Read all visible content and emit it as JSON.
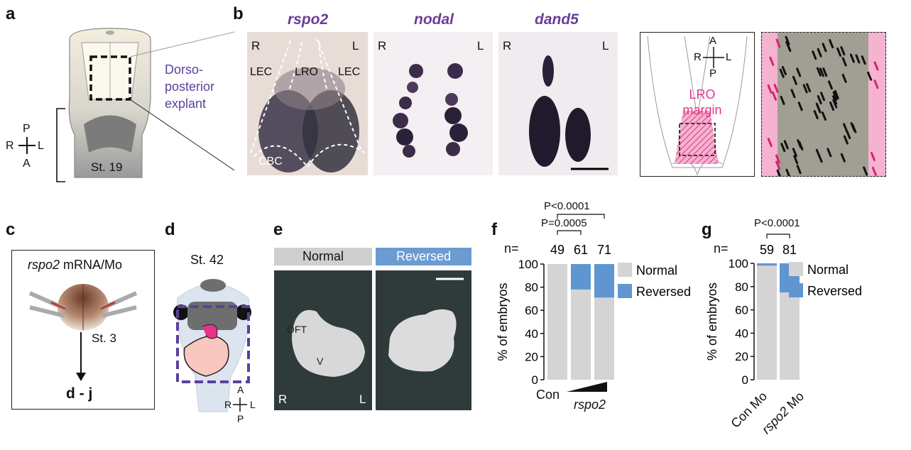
{
  "panels": {
    "a": {
      "letter": "a",
      "explant_label_line1": "Dorso-",
      "explant_label_line2": "posterior",
      "explant_label_line3": "explant",
      "stage": "St. 19",
      "axes": {
        "top": "P",
        "bottom": "A",
        "left": "R",
        "right": "L"
      },
      "colors": {
        "explant_label": "#5b3f9e"
      }
    },
    "b": {
      "letter": "b",
      "genes": [
        "rspo2",
        "nodal",
        "dand5"
      ],
      "left_side": "R",
      "right_side": "L",
      "regions": {
        "lec_left": "LEC",
        "lro": "LRO",
        "lec_right": "LEC",
        "cbc": "CBC"
      },
      "schematic": {
        "axes": {
          "top": "A",
          "bottom": "P",
          "left": "R",
          "right": "L"
        },
        "lro_line1": "LRO",
        "lro_line2": "margin",
        "colors": {
          "lro_margin": "#e8338a"
        }
      }
    },
    "c": {
      "letter": "c",
      "gene": "rspo2",
      "injection_text": " mRNA/Mo",
      "stage": "St. 3",
      "result": "d - j"
    },
    "d": {
      "letter": "d",
      "stage": "St. 42",
      "axes": {
        "top": "A",
        "bottom": "P",
        "left": "R",
        "right": "L"
      }
    },
    "e": {
      "letter": "e",
      "normal_label": "Normal",
      "reversed_label": "Reversed",
      "oft": "OFT",
      "v": "V",
      "left_side": "R",
      "right_side": "L",
      "colors": {
        "normal_header": "#cfcfcf",
        "reversed_header": "#6b9bd1"
      }
    },
    "f": {
      "letter": "f",
      "p1": "P<0.0001",
      "p2": "P=0.0005",
      "n_prefix": "n=",
      "x_con": "Con",
      "x_treat": "rspo2"
    },
    "g": {
      "letter": "g",
      "p1": "P<0.0001",
      "n_prefix": "n=",
      "x1": "Con Mo",
      "x2_gene": "rspo2",
      "x2_suffix": " Mo"
    }
  },
  "chart_data": [
    {
      "type": "bar",
      "stacked": true,
      "panel": "f",
      "categories": [
        "Con",
        "rspo2 (low)",
        "rspo2 (high)"
      ],
      "n": [
        "49",
        "61",
        "71"
      ],
      "series": [
        {
          "name": "Normal",
          "values": [
            100,
            78,
            71
          ],
          "color": "#d4d4d4"
        },
        {
          "name": "Reversed",
          "values": [
            0,
            22,
            29
          ],
          "color": "#5f96d2"
        }
      ],
      "ylabel": "% of embryos",
      "ylim": [
        0,
        100
      ],
      "yticks": [
        "0",
        "20",
        "40",
        "60",
        "80",
        "100"
      ],
      "legend": "right"
    },
    {
      "type": "bar",
      "stacked": true,
      "panel": "g",
      "categories": [
        "Con Mo",
        "rspo2 Mo"
      ],
      "n": [
        "59",
        "81"
      ],
      "series": [
        {
          "name": "Normal",
          "values": [
            98,
            75
          ],
          "color": "#d4d4d4"
        },
        {
          "name": "Reversed",
          "values": [
            2,
            25
          ],
          "color": "#5f96d2"
        }
      ],
      "ylabel": "% of embryos",
      "ylim": [
        0,
        100
      ],
      "yticks": [
        "0",
        "20",
        "40",
        "60",
        "80",
        "100"
      ],
      "legend": "right"
    }
  ]
}
